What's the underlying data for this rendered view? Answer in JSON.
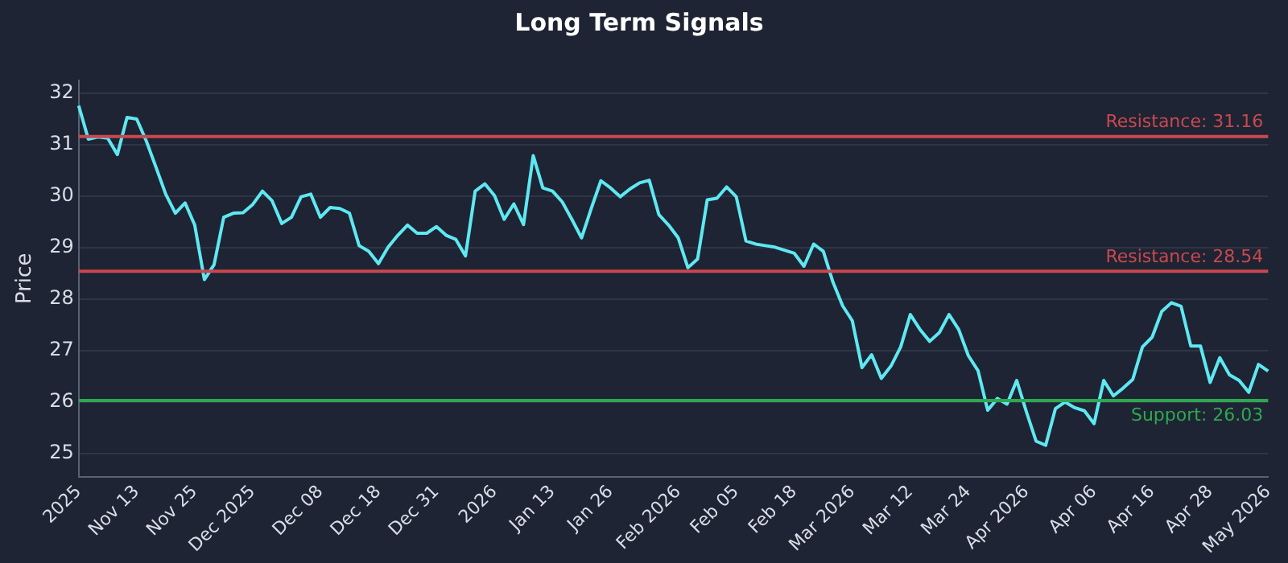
{
  "chart_data": {
    "type": "line",
    "title": "Long Term Signals",
    "ylabel": "Price",
    "categories": [
      "2025",
      null,
      null,
      null,
      null,
      null,
      "Nov 13",
      null,
      null,
      null,
      null,
      null,
      "Nov 25",
      null,
      null,
      null,
      null,
      null,
      "Dec 2025",
      null,
      null,
      null,
      null,
      null,
      null,
      "Dec 08",
      null,
      null,
      null,
      null,
      null,
      "Dec 18",
      null,
      null,
      null,
      null,
      null,
      "Dec 31",
      null,
      null,
      null,
      null,
      null,
      "2026",
      null,
      null,
      null,
      null,
      null,
      "Jan 13",
      null,
      null,
      null,
      null,
      null,
      "Jan 26",
      null,
      null,
      null,
      null,
      null,
      null,
      "Feb 2026",
      null,
      null,
      null,
      null,
      null,
      "Feb 05",
      null,
      null,
      null,
      null,
      null,
      "Feb 18",
      null,
      null,
      null,
      null,
      null,
      "Mar 2026",
      null,
      null,
      null,
      null,
      null,
      "Mar 12",
      null,
      null,
      null,
      null,
      null,
      "Mar 24",
      null,
      null,
      null,
      null,
      null,
      "Apr 2026",
      null,
      null,
      null,
      null,
      null,
      null,
      "Apr 06",
      null,
      null,
      null,
      null,
      null,
      "Apr 16",
      null,
      null,
      null,
      null,
      null,
      "Apr 28",
      null,
      null,
      null,
      null,
      null,
      "May 2026"
    ],
    "series": [
      {
        "color": "#5ee8f2",
        "values": [
          31.76,
          31.11,
          31.15,
          31.13,
          30.81,
          31.53,
          31.5,
          31.07,
          30.56,
          30.04,
          29.67,
          29.87,
          29.44,
          28.38,
          28.67,
          29.59,
          29.67,
          29.68,
          29.84,
          30.1,
          29.91,
          29.47,
          29.59,
          29.99,
          30.04,
          29.59,
          29.78,
          29.76,
          29.67,
          29.04,
          28.93,
          28.69,
          29.01,
          29.24,
          29.44,
          29.28,
          29.28,
          29.41,
          29.24,
          29.16,
          28.84,
          30.1,
          30.24,
          30.01,
          29.55,
          29.85,
          29.45,
          30.79,
          30.16,
          30.1,
          29.89,
          29.55,
          29.19,
          29.76,
          30.3,
          30.16,
          29.99,
          30.14,
          30.26,
          30.31,
          29.64,
          29.44,
          29.19,
          28.61,
          28.78,
          29.93,
          29.96,
          30.18,
          29.99,
          29.13,
          29.07,
          29.04,
          29.01,
          28.95,
          28.89,
          28.64,
          29.07,
          28.93,
          28.33,
          27.87,
          27.58,
          26.67,
          26.92,
          26.46,
          26.7,
          27.07,
          27.7,
          27.41,
          27.18,
          27.35,
          27.7,
          27.41,
          26.9,
          26.61,
          25.84,
          26.07,
          25.96,
          26.42,
          25.81,
          25.24,
          25.16,
          25.87,
          26.0,
          25.89,
          25.83,
          25.58,
          26.42,
          26.12,
          26.27,
          26.44,
          27.07,
          27.26,
          27.76,
          27.93,
          27.86,
          27.09,
          27.09,
          26.38,
          26.86,
          26.53,
          26.42,
          26.19,
          26.73,
          26.6
        ]
      }
    ],
    "ylim": [
      24.55,
      32.25
    ],
    "yticks": [
      25,
      26,
      27,
      28,
      29,
      30,
      31,
      32
    ],
    "grid": "y",
    "legend": false,
    "marker": "none",
    "line_style": "solid",
    "ref_lines": [
      {
        "axis": "y",
        "value": 31.16,
        "label": "Resistance: 31.16",
        "color": "#c9484f"
      },
      {
        "axis": "y",
        "value": 28.54,
        "label": "Resistance: 28.54",
        "color": "#c9484f"
      },
      {
        "axis": "y",
        "value": 26.03,
        "label": "Support: 26.03",
        "color": "#2ea84f"
      }
    ]
  }
}
